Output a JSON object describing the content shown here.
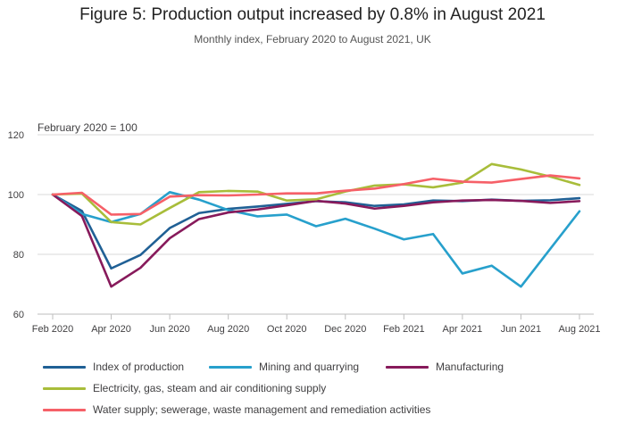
{
  "chart_data": {
    "type": "line",
    "title": "Figure 5: Production output increased by 0.8% in August 2021",
    "subtitle": "Monthly index, February 2020 to August 2021, UK",
    "y_unit_label": "February 2020 = 100",
    "ylim": [
      60,
      120
    ],
    "yticks": [
      "60",
      "80",
      "100",
      "120"
    ],
    "x": [
      "Feb 2020",
      "Mar 2020",
      "Apr 2020",
      "May 2020",
      "Jun 2020",
      "Jul 2020",
      "Aug 2020",
      "Sep 2020",
      "Oct 2020",
      "Nov 2020",
      "Dec 2020",
      "Jan 2021",
      "Feb 2021",
      "Mar 2021",
      "Apr 2021",
      "May 2021",
      "Jun 2021",
      "Jul 2021",
      "Aug 2021"
    ],
    "xticks": [
      "Feb 2020",
      "Apr 2020",
      "Jun 2020",
      "Aug 2020",
      "Oct 2020",
      "Dec 2020",
      "Feb 2021",
      "Apr 2021",
      "Jun 2021",
      "Aug 2021"
    ],
    "grid": "horizontal",
    "legend_position": "bottom",
    "series": [
      {
        "name": "Index of production",
        "color": "#206095",
        "values": [
          100,
          94.5,
          75.3,
          79.8,
          88.8,
          93.8,
          95.2,
          96.0,
          96.9,
          97.8,
          97.4,
          96.2,
          96.7,
          98.0,
          97.8,
          98.3,
          97.9,
          98.1,
          98.8
        ]
      },
      {
        "name": "Mining and quarrying",
        "color": "#27A0CC",
        "values": [
          100,
          93.5,
          90.8,
          93.5,
          100.8,
          98.3,
          94.8,
          92.7,
          93.3,
          89.4,
          91.9,
          88.6,
          85.0,
          86.8,
          73.6,
          76.2,
          69.2,
          81.8,
          94.4
        ]
      },
      {
        "name": "Manufacturing",
        "color": "#871A5B",
        "values": [
          100,
          92.8,
          69.2,
          75.5,
          85.4,
          91.8,
          94.0,
          95.0,
          96.4,
          97.9,
          97.0,
          95.3,
          96.2,
          97.4,
          98.0,
          98.2,
          97.9,
          97.2,
          97.8
        ]
      },
      {
        "name": "Electricity, gas, steam and air conditioning supply",
        "color": "#A8BD3A",
        "values": [
          100,
          100.3,
          90.8,
          90.0,
          95.5,
          100.8,
          101.2,
          101.0,
          98.0,
          98.4,
          101.0,
          103.0,
          103.4,
          102.4,
          104.0,
          110.2,
          108.4,
          106.0,
          103.2
        ]
      },
      {
        "name": "Water supply; sewerage, waste management and remediation activities",
        "color": "#F66068",
        "values": [
          100,
          100.6,
          93.3,
          93.5,
          99.3,
          99.8,
          99.7,
          100.0,
          100.4,
          100.4,
          101.3,
          102.0,
          103.5,
          105.3,
          104.3,
          104.0,
          105.2,
          106.4,
          105.4
        ]
      }
    ]
  }
}
